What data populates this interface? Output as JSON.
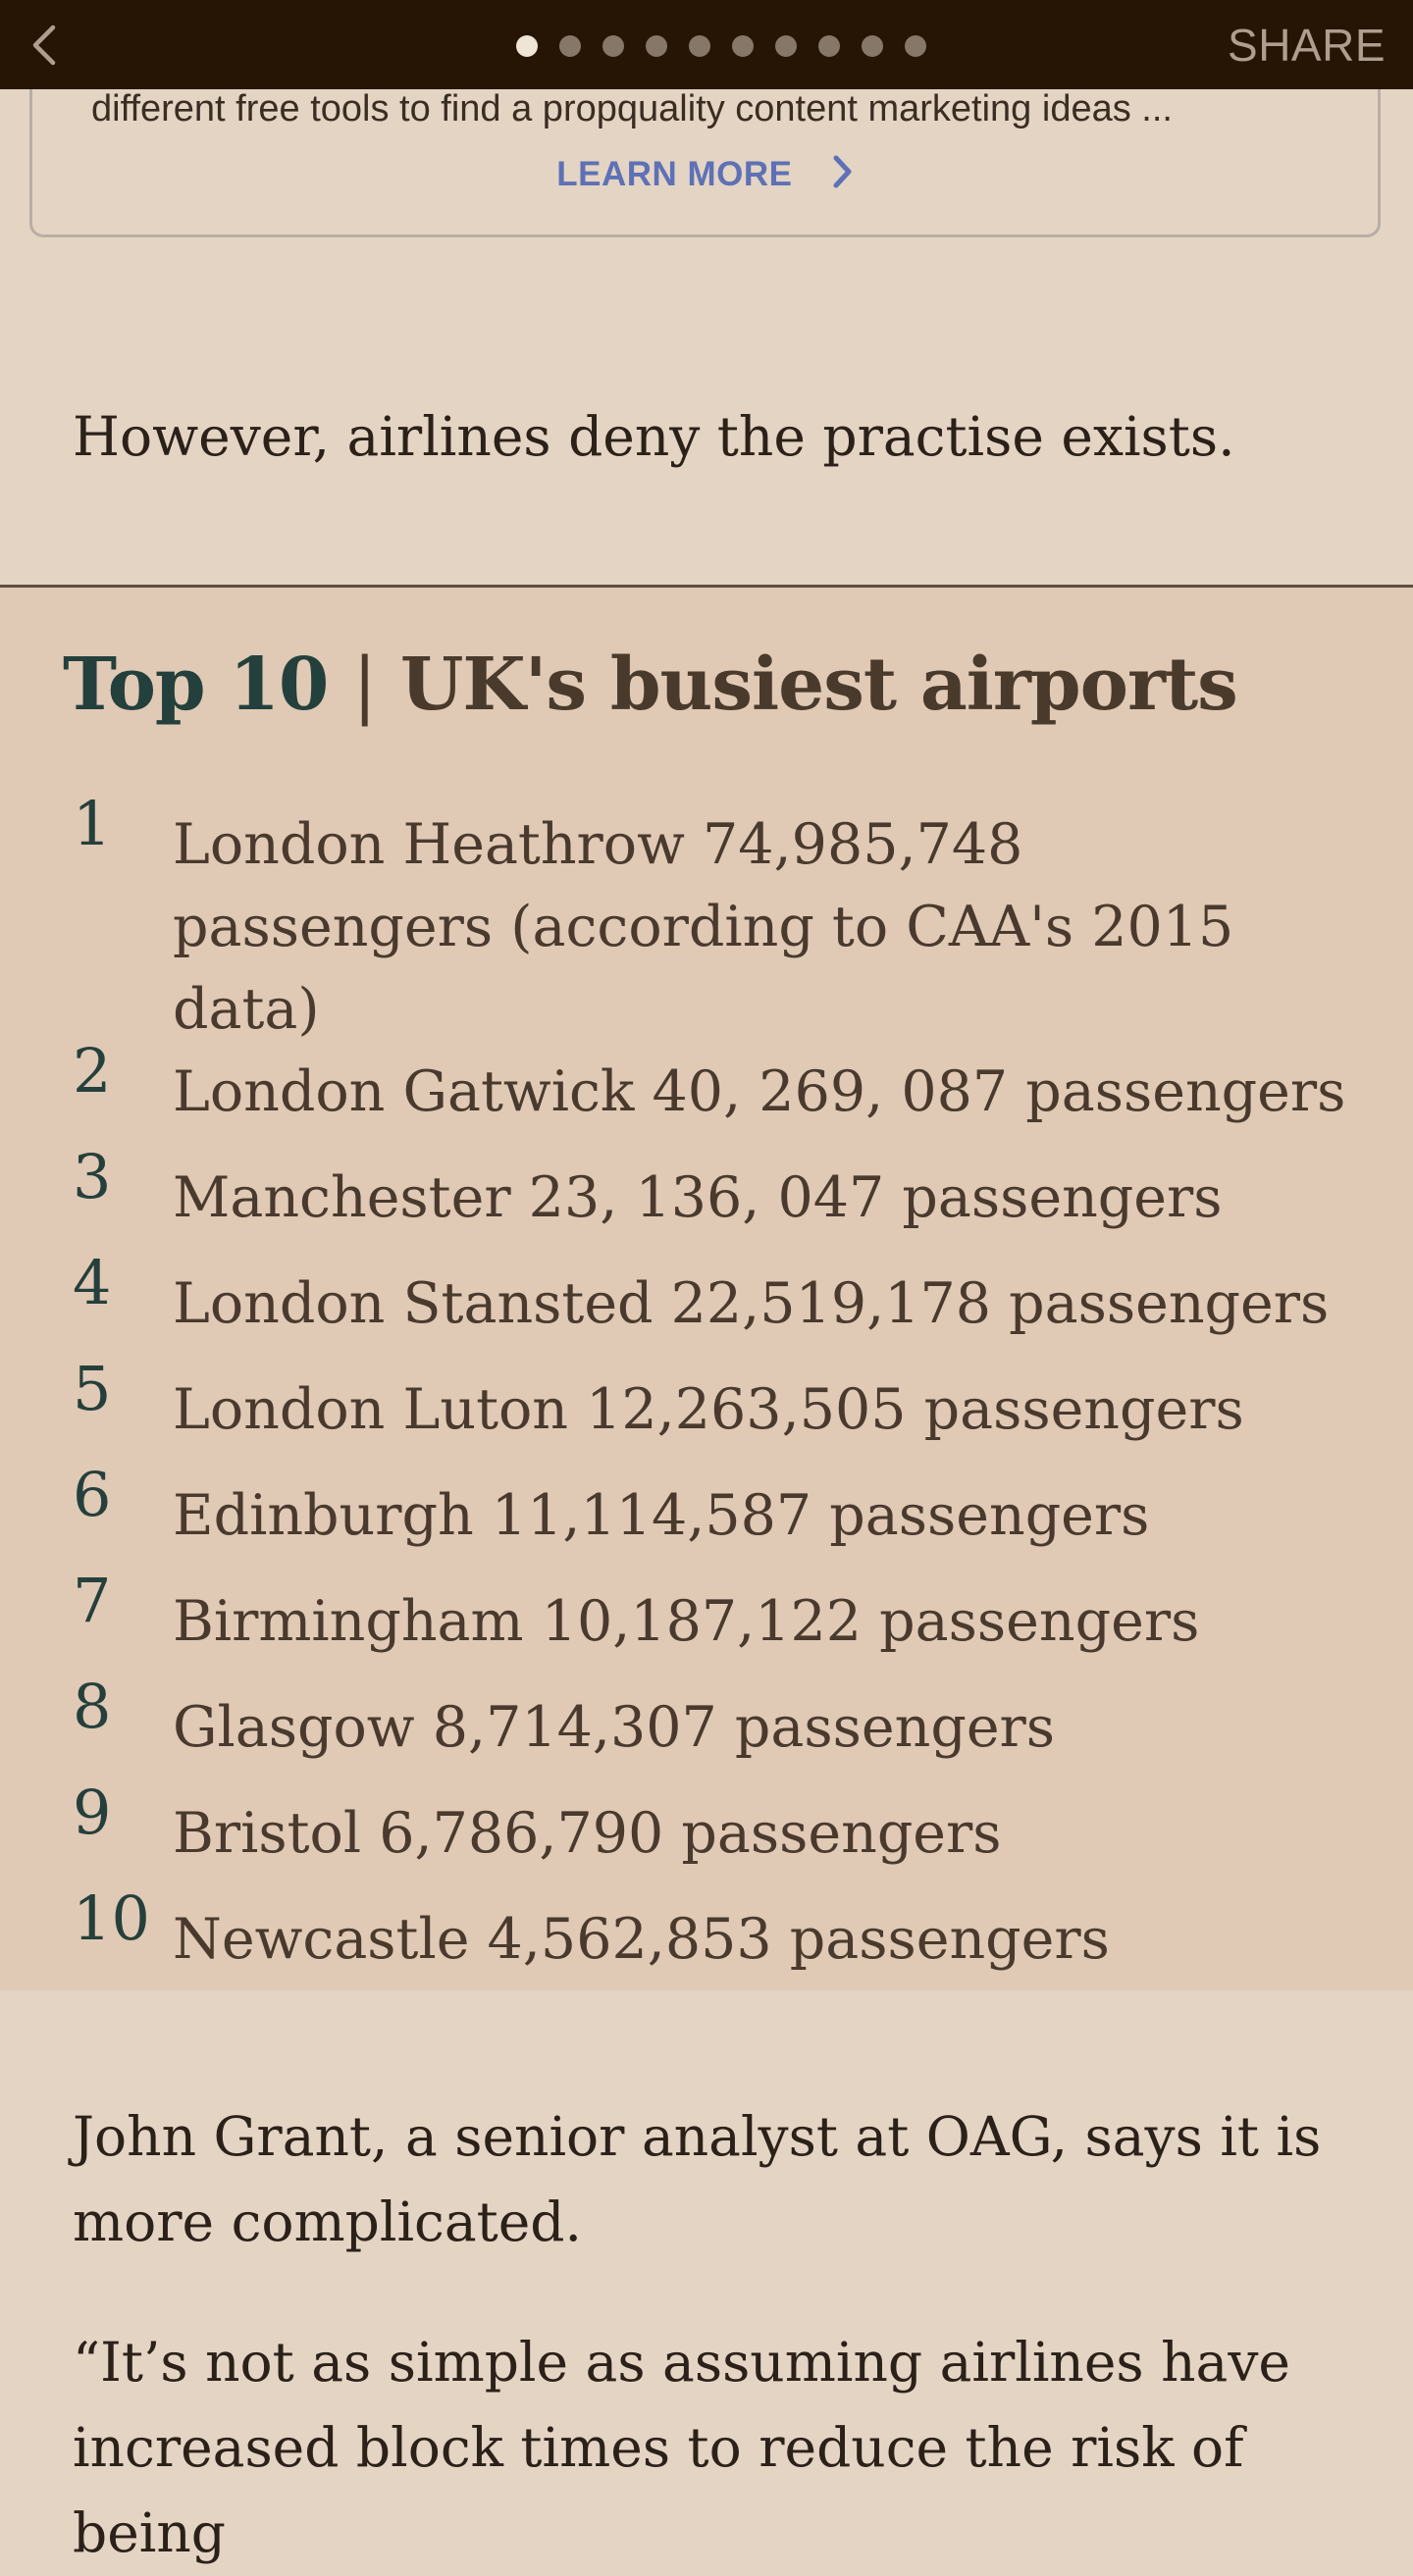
{
  "topbar": {
    "back_icon": "chevron-left-icon",
    "page_count": 10,
    "active_page": 1,
    "share_label": "SHARE"
  },
  "promo": {
    "cut_text": "different free tools to find a propquality content marketing ideas ...",
    "learn_more_label": "LEARN MORE",
    "learn_more_icon": "chevron-right-icon"
  },
  "article": {
    "para_1": "However, airlines deny the practise exists.",
    "para_2": "John Grant, a senior analyst at OAG, says it is more complicated.",
    "para_3": "“It’s not as simple as assuming airlines have increased block times to reduce the risk of being"
  },
  "top10": {
    "title_accent": "Top 10",
    "title_sep": "|",
    "title_rest": "UK's busiest airports",
    "items": [
      {
        "rank": "1",
        "text": "London Heathrow 74,985,748 passengers (according to CAA's 2015 data)"
      },
      {
        "rank": "2",
        "text": "London Gatwick 40, 269, 087 passengers"
      },
      {
        "rank": "3",
        "text": "Manchester 23, 136, 047 passengers"
      },
      {
        "rank": "4",
        "text": "London Stansted 22,519,178 passengers"
      },
      {
        "rank": "5",
        "text": "London Luton 12,263,505 passengers"
      },
      {
        "rank": "6",
        "text": "Edinburgh 11,114,587 passengers"
      },
      {
        "rank": "7",
        "text": "Birmingham 10,187,122 passengers"
      },
      {
        "rank": "8",
        "text": "Glasgow 8,714,307 passengers"
      },
      {
        "rank": "9",
        "text": "Bristol 6,786,790 passengers"
      },
      {
        "rank": "10",
        "text": "Newcastle 4,562,853 passengers"
      }
    ]
  },
  "colors": {
    "topbar_bg": "#261405",
    "page_bg": "#e4d4c3",
    "panel_bg": "#e0c9b5",
    "link": "#5e71b6",
    "rank": "#25403c"
  }
}
